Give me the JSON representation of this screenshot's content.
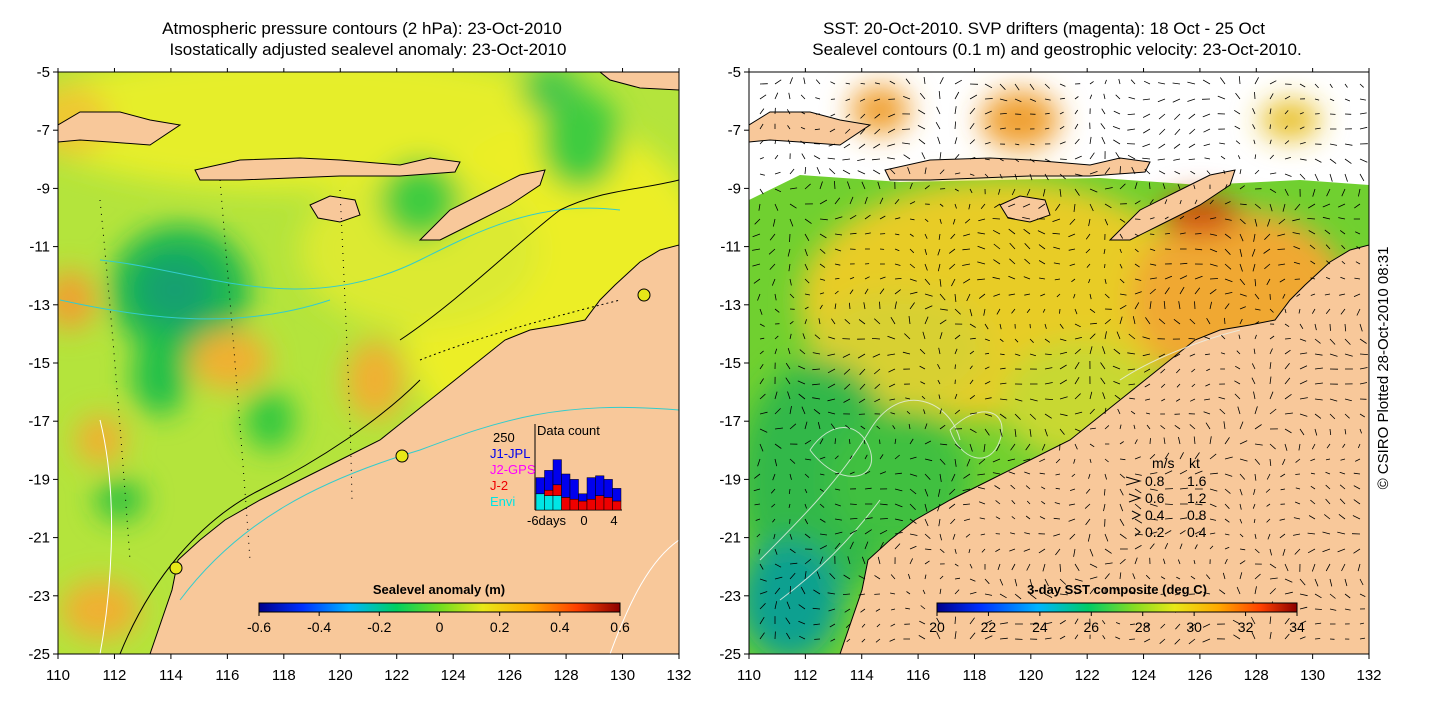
{
  "left_panel": {
    "title_line1": "Atmospheric pressure contours (2 hPa): 23-Oct-2010",
    "title_line2": "Isostatically adjusted sealevel anomaly: 23-Oct-2010",
    "x_ticks": [
      "110",
      "112",
      "114",
      "116",
      "118",
      "120",
      "122",
      "124",
      "126",
      "128",
      "130",
      "132"
    ],
    "y_ticks": [
      "-5",
      "-7",
      "-9",
      "-11",
      "-13",
      "-15",
      "-17",
      "-19",
      "-21",
      "-23",
      "-25"
    ],
    "colorbar": {
      "label": "Sealevel anomaly (m)",
      "ticks": [
        "-0.6",
        "-0.4",
        "-0.2",
        "0",
        "0.2",
        "0.4",
        "0.6"
      ]
    },
    "data_count": {
      "title": "Data count",
      "max_label": "250",
      "legend": [
        {
          "name": "J1-JPL",
          "color": "#0000ee"
        },
        {
          "name": "J2-GPS",
          "color": "#ff00ff"
        },
        {
          "name": "J-2",
          "color": "#ee0000"
        },
        {
          "name": "Envi",
          "color": "#00e5e5"
        }
      ],
      "x_labels": [
        "-6days",
        "0",
        "4"
      ],
      "bars": [
        {
          "blue": 0.45,
          "red": 0.0,
          "cyan": 0.45
        },
        {
          "blue": 0.55,
          "red": 0.15,
          "cyan": 0.4
        },
        {
          "blue": 0.7,
          "red": 0.3,
          "cyan": 0.4
        },
        {
          "blue": 0.65,
          "red": 0.35,
          "cyan": 0.0
        },
        {
          "blue": 0.55,
          "red": 0.3,
          "cyan": 0.0
        },
        {
          "blue": 0.2,
          "red": 0.25,
          "cyan": 0.0
        },
        {
          "blue": 0.6,
          "red": 0.3,
          "cyan": 0.0
        },
        {
          "blue": 0.55,
          "red": 0.4,
          "cyan": 0.0
        },
        {
          "blue": 0.5,
          "red": 0.35,
          "cyan": 0.0
        },
        {
          "blue": 0.35,
          "red": 0.25,
          "cyan": 0.0
        }
      ]
    }
  },
  "right_panel": {
    "title_line1": "SST: 20-Oct-2010. SVP drifters (magenta): 18 Oct - 25 Oct",
    "title_line2": "Sealevel contours (0.1 m) and geostrophic velocity: 23-Oct-2010.",
    "x_ticks": [
      "110",
      "112",
      "114",
      "116",
      "118",
      "120",
      "122",
      "124",
      "126",
      "128",
      "130",
      "132"
    ],
    "y_ticks": [
      "-5",
      "-7",
      "-9",
      "-11",
      "-13",
      "-15",
      "-17",
      "-19",
      "-21",
      "-23",
      "-25"
    ],
    "colorbar": {
      "label": "3-day SST composite (deg C)",
      "ticks": [
        "20",
        "22",
        "24",
        "26",
        "28",
        "30",
        "32",
        "34"
      ]
    },
    "velocity_legend": {
      "header_ms": "m/s",
      "header_kt": "kt",
      "rows": [
        {
          "ms": "0.8",
          "kt": "1.6"
        },
        {
          "ms": "0.6",
          "kt": "1.2"
        },
        {
          "ms": "0.4",
          "kt": "0.8"
        },
        {
          "ms": "0.2",
          "kt": "0.4"
        }
      ]
    }
  },
  "credit": "© CSIRO Plotted 28-Oct-2010 08:31",
  "colors": {
    "land": "#f8c89a",
    "accent_cyan": "#33cccc"
  }
}
